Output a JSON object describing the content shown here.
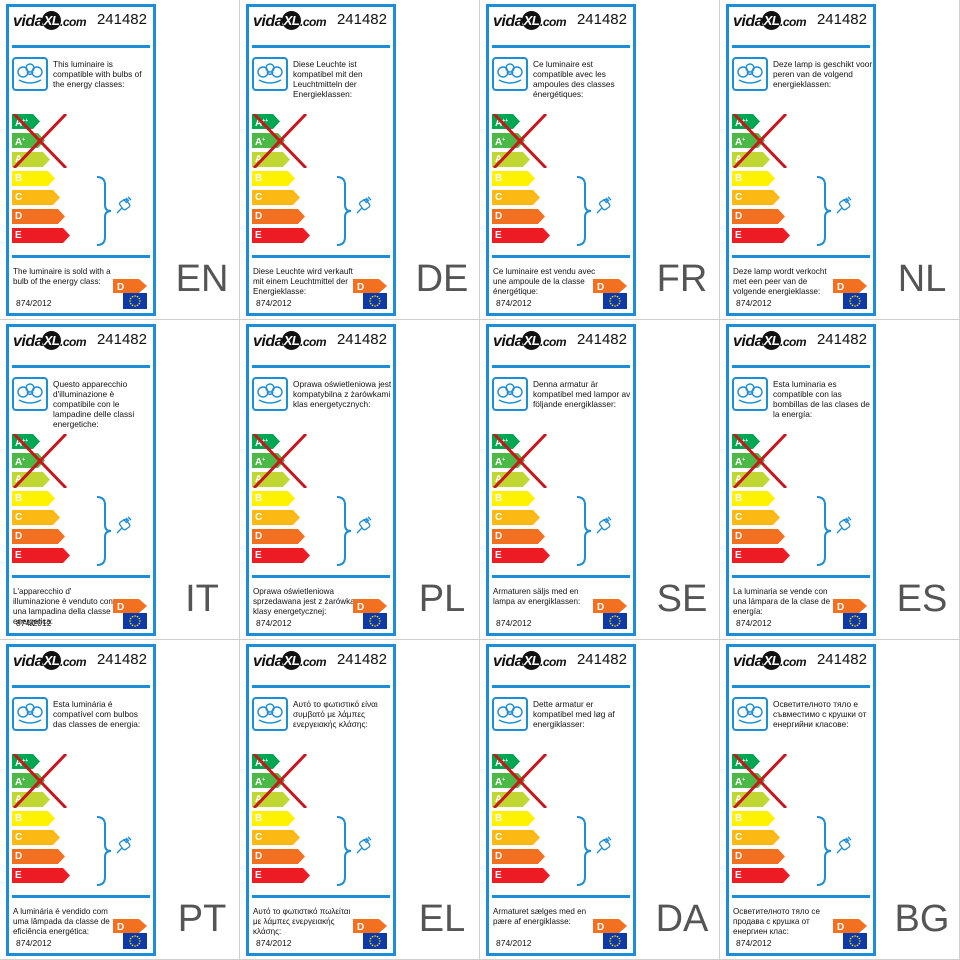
{
  "brand": {
    "name": "vida",
    "x": "XL",
    "suffix": ".com"
  },
  "product_code": "241482",
  "regulation": "874/2012",
  "sold_class": "D",
  "classes": [
    {
      "letter": "A",
      "suffix": "++",
      "color": "#00a651"
    },
    {
      "letter": "A",
      "suffix": "+",
      "color": "#4cb848"
    },
    {
      "letter": "A",
      "suffix": "",
      "color": "#bfd730"
    },
    {
      "letter": "B",
      "suffix": "",
      "color": "#fff200"
    },
    {
      "letter": "C",
      "suffix": "",
      "color": "#fdb913"
    },
    {
      "letter": "D",
      "suffix": "",
      "color": "#f37021"
    },
    {
      "letter": "E",
      "suffix": "",
      "color": "#ed1c24"
    }
  ],
  "colors": {
    "frame": "#1c8ed6",
    "cross": "#c8161d",
    "eu_blue": "#0d3aa8",
    "eu_star": "#ffde00"
  },
  "icons": {
    "bulb": "bulb-icon",
    "lamp": "lamp-icon",
    "eu": "eu-flag-icon"
  },
  "labels": [
    {
      "lang": "EN",
      "compat": "This luminaire is compatible with bulbs of the energy classes:",
      "sold": "The luminaire is sold with a bulb of the energy class:"
    },
    {
      "lang": "DE",
      "compat": "Diese Leuchte ist kompatibel mit den Leuchtmitteln der Energieklassen:",
      "sold": "Diese Leuchte wird verkauft mit einem Leuchtmittel der Energieklasse:"
    },
    {
      "lang": "FR",
      "compat": "Ce luminaire est compatible avec les ampoules des classes énergétiques:",
      "sold": "Ce luminaire est vendu avec une ampoule de la classe énergétique:"
    },
    {
      "lang": "NL",
      "compat": "Deze lamp is geschikt voor peren van de volgend energieklassen:",
      "sold": "Deze lamp wordt verkocht met een peer van de volgende energieklasse:"
    },
    {
      "lang": "IT",
      "compat": "Questo apparecchio d'illuminazione è compatibile con le lampadine delle classi energetiche:",
      "sold": "L'apparecchio d' illuminazione è venduto con una lampadina della classe energetica:"
    },
    {
      "lang": "PL",
      "compat": "Oprawa oświetleniowa jest kompatybilna z żarówkami klas energetycznych:",
      "sold": "Oprawa oświetleniowa sprzedawana jest z żarówką klasy energetycznej:"
    },
    {
      "lang": "SE",
      "compat": "Denna armatur är kompatibel med lampor av följande energiklasser:",
      "sold": "Armaturen säljs med en lampa av energiklassen:"
    },
    {
      "lang": "ES",
      "compat": "Esta luminaria es compatible con las bombillas de las clases de la energía:",
      "sold": "La luminaria se vende con una lámpara de la clase de energía:"
    },
    {
      "lang": "PT",
      "compat": "Esta luminária é compatível com bulbos das classes de energia:",
      "sold": "A luminária é vendido com uma lâmpada da classe de eficiência energética:"
    },
    {
      "lang": "EL",
      "compat": "Αυτό το φωτιστικό είναι συμβατό με λάμπες ενεργειακής κλάσης:",
      "sold": "Αυτό το φωτιστικό πωλείται με λάμπες ενεργειακής κλάσης:"
    },
    {
      "lang": "DA",
      "compat": "Dette armatur er kompatibel med løg af energiklasser:",
      "sold": "Armaturet sælges med en pære af energiklasse:"
    },
    {
      "lang": "BG",
      "compat": "Осветителното тяло е съвместимо с крушки от енергийни класове:",
      "sold": "Осветителното тяло се продава с крушка от енергиен клас:"
    }
  ]
}
